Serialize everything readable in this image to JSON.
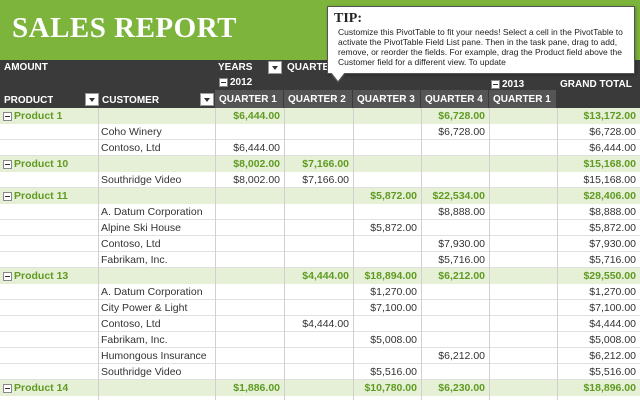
{
  "header": {
    "title": "SALES REPORT"
  },
  "tip": {
    "title": "TIP:",
    "body": "Customize this PivotTable to fit your needs! Select a cell in the PivotTable to activate the PivotTable Field List pane. Then in the task pane, drag to add, remove, or reorder the fields. For example, drag the Product field above the Customer field for a different view. To update"
  },
  "pivot": {
    "amount_label": "AMOUNT",
    "years_label": "YEARS",
    "quarters_label": "QUARTERS",
    "year_2012": "2012",
    "year_2013": "2013",
    "product_label": "PRODUCT",
    "customer_label": "CUSTOMER",
    "grand_total_label": "GRAND TOTAL",
    "quarters": [
      "QUARTER 1",
      "QUARTER 2",
      "QUARTER 3",
      "QUARTER 4",
      "QUARTER 1"
    ]
  },
  "rows": [
    {
      "type": "product",
      "name": "Product 1",
      "q": [
        "$6,444.00",
        "",
        "",
        "$6,728.00",
        ""
      ],
      "total": "$13,172.00"
    },
    {
      "type": "customer",
      "name": "Coho Winery",
      "q": [
        "",
        "",
        "",
        "$6,728.00",
        ""
      ],
      "total": "$6,728.00"
    },
    {
      "type": "customer",
      "name": "Contoso, Ltd",
      "q": [
        "$6,444.00",
        "",
        "",
        "",
        ""
      ],
      "total": "$6,444.00"
    },
    {
      "type": "product",
      "name": "Product 10",
      "q": [
        "$8,002.00",
        "$7,166.00",
        "",
        "",
        ""
      ],
      "total": "$15,168.00"
    },
    {
      "type": "customer",
      "name": "Southridge Video",
      "q": [
        "$8,002.00",
        "$7,166.00",
        "",
        "",
        ""
      ],
      "total": "$15,168.00"
    },
    {
      "type": "product",
      "name": "Product 11",
      "q": [
        "",
        "",
        "$5,872.00",
        "$22,534.00",
        ""
      ],
      "total": "$28,406.00"
    },
    {
      "type": "customer",
      "name": "A. Datum Corporation",
      "q": [
        "",
        "",
        "",
        "$8,888.00",
        ""
      ],
      "total": "$8,888.00"
    },
    {
      "type": "customer",
      "name": "Alpine Ski House",
      "q": [
        "",
        "",
        "$5,872.00",
        "",
        ""
      ],
      "total": "$5,872.00"
    },
    {
      "type": "customer",
      "name": "Contoso, Ltd",
      "q": [
        "",
        "",
        "",
        "$7,930.00",
        ""
      ],
      "total": "$7,930.00"
    },
    {
      "type": "customer",
      "name": "Fabrikam, Inc.",
      "q": [
        "",
        "",
        "",
        "$5,716.00",
        ""
      ],
      "total": "$5,716.00"
    },
    {
      "type": "product",
      "name": "Product 13",
      "q": [
        "",
        "$4,444.00",
        "$18,894.00",
        "$6,212.00",
        ""
      ],
      "total": "$29,550.00"
    },
    {
      "type": "customer",
      "name": "A. Datum Corporation",
      "q": [
        "",
        "",
        "$1,270.00",
        "",
        ""
      ],
      "total": "$1,270.00"
    },
    {
      "type": "customer",
      "name": "City Power & Light",
      "q": [
        "",
        "",
        "$7,100.00",
        "",
        ""
      ],
      "total": "$7,100.00"
    },
    {
      "type": "customer",
      "name": "Contoso, Ltd",
      "q": [
        "",
        "$4,444.00",
        "",
        "",
        ""
      ],
      "total": "$4,444.00"
    },
    {
      "type": "customer",
      "name": "Fabrikam, Inc.",
      "q": [
        "",
        "",
        "$5,008.00",
        "",
        ""
      ],
      "total": "$5,008.00"
    },
    {
      "type": "customer",
      "name": "Humongous Insurance",
      "q": [
        "",
        "",
        "",
        "$6,212.00",
        ""
      ],
      "total": "$6,212.00"
    },
    {
      "type": "customer",
      "name": "Southridge Video",
      "q": [
        "",
        "",
        "$5,516.00",
        "",
        ""
      ],
      "total": "$5,516.00"
    },
    {
      "type": "product",
      "name": "Product 14",
      "q": [
        "$1,886.00",
        "",
        "$10,780.00",
        "$6,230.00",
        ""
      ],
      "total": "$18,896.00"
    }
  ],
  "colors": {
    "accent": "#7cb43c",
    "header_dark": "#3a3a3a",
    "product_row": "#e6f0d6",
    "product_text": "#5f9b23"
  }
}
